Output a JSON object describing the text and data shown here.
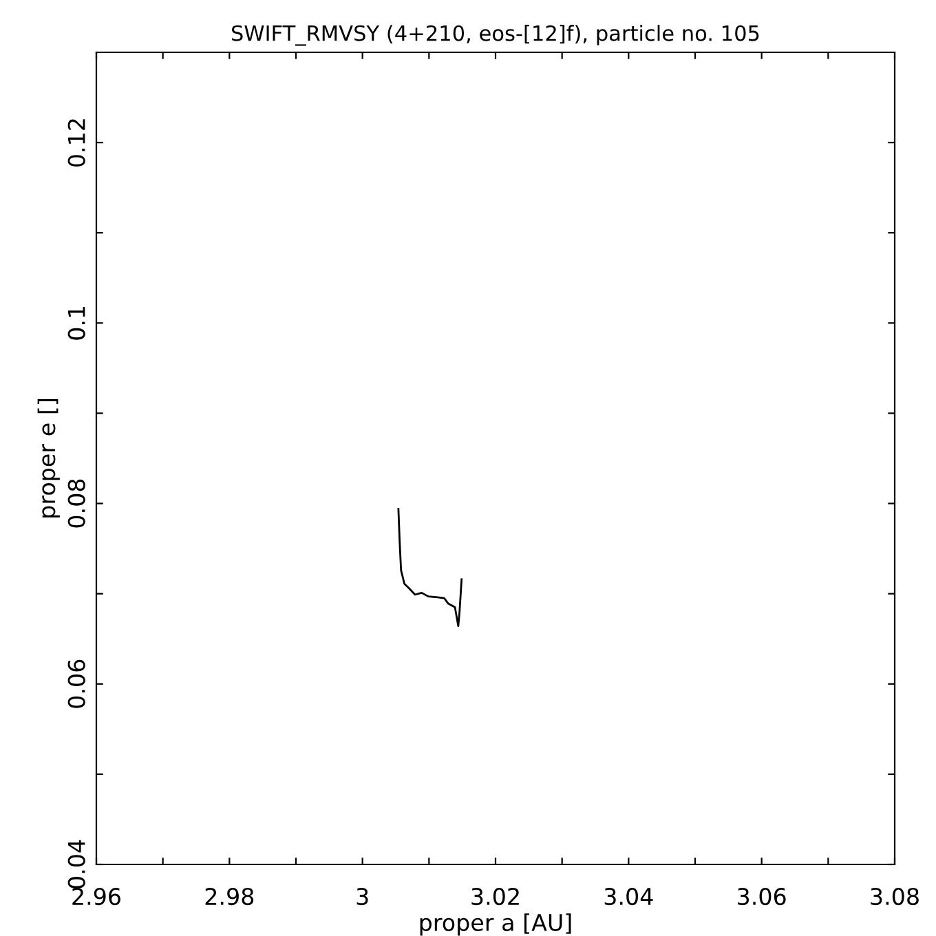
{
  "chart_data": {
    "type": "line",
    "title": "SWIFT_RMVSY (4+210, eos-[12]f), particle no. 105",
    "xlabel": "proper a [AU]",
    "ylabel": "proper e []",
    "series": [
      {
        "color": "#000000",
        "x": [
          3.0054,
          3.0056,
          3.0058,
          3.0063,
          3.007,
          3.0079,
          3.0089,
          3.0099,
          3.0113,
          3.0123,
          3.0129,
          3.0139,
          3.0144,
          3.0146,
          3.0149
        ],
        "values": [
          0.0794,
          0.0756,
          0.0726,
          0.0711,
          0.0706,
          0.0699,
          0.0701,
          0.0697,
          0.0696,
          0.0695,
          0.0689,
          0.0685,
          0.0664,
          0.0681,
          0.0716
        ]
      }
    ],
    "xlim": [
      2.96,
      3.08
    ],
    "ylim": [
      0.04,
      0.13
    ],
    "xticks": [
      2.96,
      {
        "value": 2.97,
        "label": null
      },
      2.98,
      {
        "value": 2.99,
        "label": null
      },
      3,
      {
        "value": 3.01,
        "label": null
      },
      3.02,
      {
        "value": 3.03,
        "label": null
      },
      3.04,
      {
        "value": 3.05,
        "label": null
      },
      3.06,
      {
        "value": 3.07,
        "label": null
      },
      3.08
    ],
    "yticks": [
      0.04,
      {
        "value": 0.05,
        "label": null
      },
      0.06,
      {
        "value": 0.07,
        "label": null
      },
      0.08,
      {
        "value": 0.09,
        "label": null
      },
      0.1,
      {
        "value": 0.11,
        "label": null
      },
      0.12
    ],
    "grid": false,
    "marker": "none",
    "line_style": "solid"
  }
}
